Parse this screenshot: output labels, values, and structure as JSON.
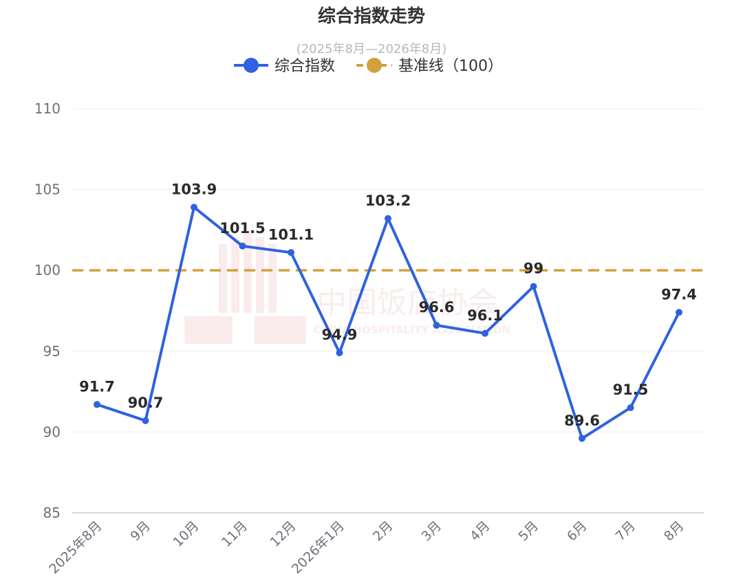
{
  "chart_data": {
    "type": "line",
    "title": "综合指数走势",
    "subtitle": "(2025年8月—2026年8月)",
    "categories": [
      "2025年8月",
      "9月",
      "10月",
      "11月",
      "12月",
      "2026年1月",
      "2月",
      "3月",
      "4月",
      "5月",
      "6月",
      "7月",
      "8月"
    ],
    "series": [
      {
        "name": "综合指数",
        "color": "#2f62e0",
        "values": [
          91.7,
          90.7,
          103.9,
          101.5,
          101.1,
          94.9,
          103.2,
          96.6,
          96.1,
          99,
          89.6,
          91.5,
          97.4
        ]
      }
    ],
    "baseline": {
      "name": "基准线（100）",
      "value": 100,
      "color": "#d4a03c"
    },
    "ylim": [
      85,
      110
    ],
    "yticks": [
      85,
      90,
      95,
      100,
      105,
      110
    ],
    "grid": true,
    "legend_position": "top-center",
    "watermark": {
      "text": "中国饭店协会",
      "subtext": "CHINA HOSPITALITY ASSOCIATION"
    }
  }
}
